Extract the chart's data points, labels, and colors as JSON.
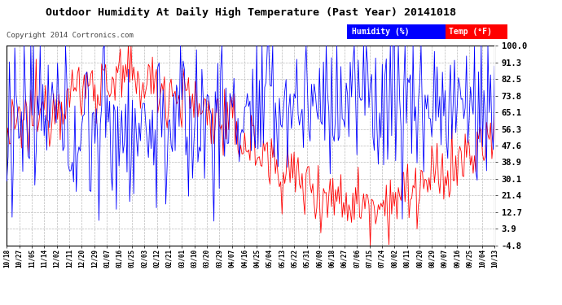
{
  "title": "Outdoor Humidity At Daily High Temperature (Past Year) 20141018",
  "copyright": "Copyright 2014 Cortronics.com",
  "ylabel_right_ticks": [
    100.0,
    91.3,
    82.5,
    73.8,
    65.1,
    56.3,
    47.6,
    38.9,
    30.1,
    21.4,
    12.7,
    3.9,
    -4.8
  ],
  "ylim": [
    -4.8,
    100.0
  ],
  "bg_color": "#FFFFFF",
  "plot_bg_color": "#FFFFFF",
  "grid_color": "#BBBBBB",
  "legend_humidity_color": "#0000FF",
  "legend_temp_color": "#FF0000",
  "legend_humidity_label": "Humidity (%)",
  "legend_temp_label": "Temp (°F)",
  "x_labels": [
    "10/18",
    "10/27",
    "11/05",
    "11/14",
    "12/02",
    "12/11",
    "12/20",
    "12/29",
    "01/07",
    "01/16",
    "01/25",
    "02/03",
    "02/12",
    "02/21",
    "03/01",
    "03/10",
    "03/20",
    "03/29",
    "04/07",
    "04/16",
    "04/25",
    "05/04",
    "05/13",
    "05/22",
    "05/31",
    "06/09",
    "06/18",
    "06/27",
    "07/06",
    "07/15",
    "07/24",
    "08/02",
    "08/11",
    "08/20",
    "08/29",
    "09/07",
    "09/16",
    "09/25",
    "10/04",
    "10/13"
  ],
  "n_points": 366
}
